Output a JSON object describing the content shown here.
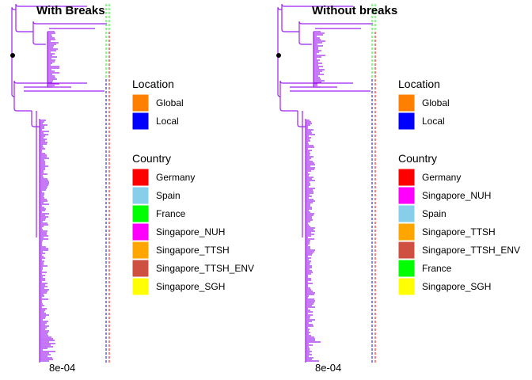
{
  "chart_data": [
    {
      "type": "tree",
      "title": "With Breaks",
      "scale_bar_label": "8e-04",
      "branch_color": "#a020f0",
      "legends": [
        {
          "title": "Location",
          "entries": [
            {
              "label": "Global",
              "color": "#ff8000"
            },
            {
              "label": "Local",
              "color": "#0000ff"
            }
          ]
        },
        {
          "title": "Country",
          "entries": [
            {
              "label": "Germany",
              "color": "#ff0000"
            },
            {
              "label": "Spain",
              "color": "#87ceeb"
            },
            {
              "label": "France",
              "color": "#00ff00"
            },
            {
              "label": "Singapore_NUH",
              "color": "#ff00ff"
            },
            {
              "label": "Singapore_TTSH",
              "color": "#ffa500"
            },
            {
              "label": "Singapore_TTSH_ENV",
              "color": "#cd5040"
            },
            {
              "label": "Singapore_SGH",
              "color": "#ffff00"
            }
          ]
        }
      ]
    },
    {
      "type": "tree",
      "title": "Without breaks",
      "scale_bar_label": "8e-04",
      "branch_color": "#a020f0",
      "legends": [
        {
          "title": "Location",
          "entries": [
            {
              "label": "Global",
              "color": "#ff8000"
            },
            {
              "label": "Local",
              "color": "#0000ff"
            }
          ]
        },
        {
          "title": "Country",
          "entries": [
            {
              "label": "Germany",
              "color": "#ff0000"
            },
            {
              "label": "Singapore_NUH",
              "color": "#ff00ff"
            },
            {
              "label": "Spain",
              "color": "#87ceeb"
            },
            {
              "label": "Singapore_TTSH",
              "color": "#ffa500"
            },
            {
              "label": "Singapore_TTSH_ENV",
              "color": "#cd5040"
            },
            {
              "label": "France",
              "color": "#00ff00"
            },
            {
              "label": "Singapore_SGH",
              "color": "#ffff00"
            }
          ]
        }
      ]
    }
  ]
}
